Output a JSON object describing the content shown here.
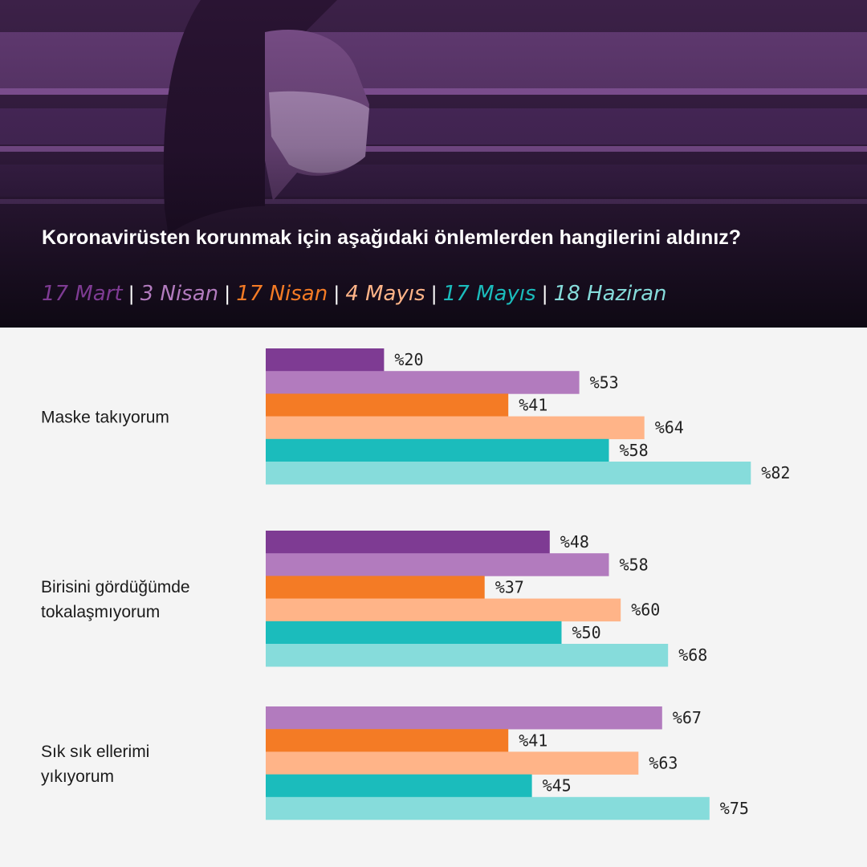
{
  "header": {
    "title": "Koronavirüsten korunmak için aşağıdaki önlemlerden hangilerini aldınız?",
    "separator": "|"
  },
  "legend": [
    {
      "label": "17 Mart",
      "color": "#7e3b93"
    },
    {
      "label": "3 Nisan",
      "color": "#b27bbe"
    },
    {
      "label": "17 Nisan",
      "color": "#f47b25"
    },
    {
      "label": "4 Mayıs",
      "color": "#ffb488"
    },
    {
      "label": "17 Mayıs",
      "color": "#1bbcbc"
    },
    {
      "label": "18 Haziran",
      "color": "#86dcdb"
    }
  ],
  "chart_data": {
    "type": "bar",
    "orientation": "horizontal",
    "title": "Koronavirüsten korunmak için aşağıdaki önlemlerden hangilerini aldınız?",
    "value_prefix": "%",
    "categories": [
      "Maske takıyorum",
      "Birisini gördüğümde tokalaşmıyorum",
      "Sık sık ellerimi yıkıyorum"
    ],
    "category_lines": [
      [
        "Maske takıyorum"
      ],
      [
        "Birisini gördüğümde",
        "tokalaşmıyorum"
      ],
      [
        "Sık sık ellerimi",
        "yıkıyorum"
      ]
    ],
    "series": [
      {
        "name": "17 Mart",
        "color": "#7e3b93",
        "values": [
          20,
          48,
          null
        ]
      },
      {
        "name": "3 Nisan",
        "color": "#b27bbe",
        "values": [
          53,
          58,
          67
        ]
      },
      {
        "name": "17 Nisan",
        "color": "#f47b25",
        "values": [
          41,
          37,
          41
        ]
      },
      {
        "name": "4 Mayıs",
        "color": "#ffb488",
        "values": [
          64,
          60,
          63
        ]
      },
      {
        "name": "17 Mayıs",
        "color": "#1bbcbc",
        "values": [
          58,
          50,
          45
        ]
      },
      {
        "name": "18 Haziran",
        "color": "#86dcdb",
        "values": [
          82,
          68,
          75
        ]
      }
    ]
  }
}
